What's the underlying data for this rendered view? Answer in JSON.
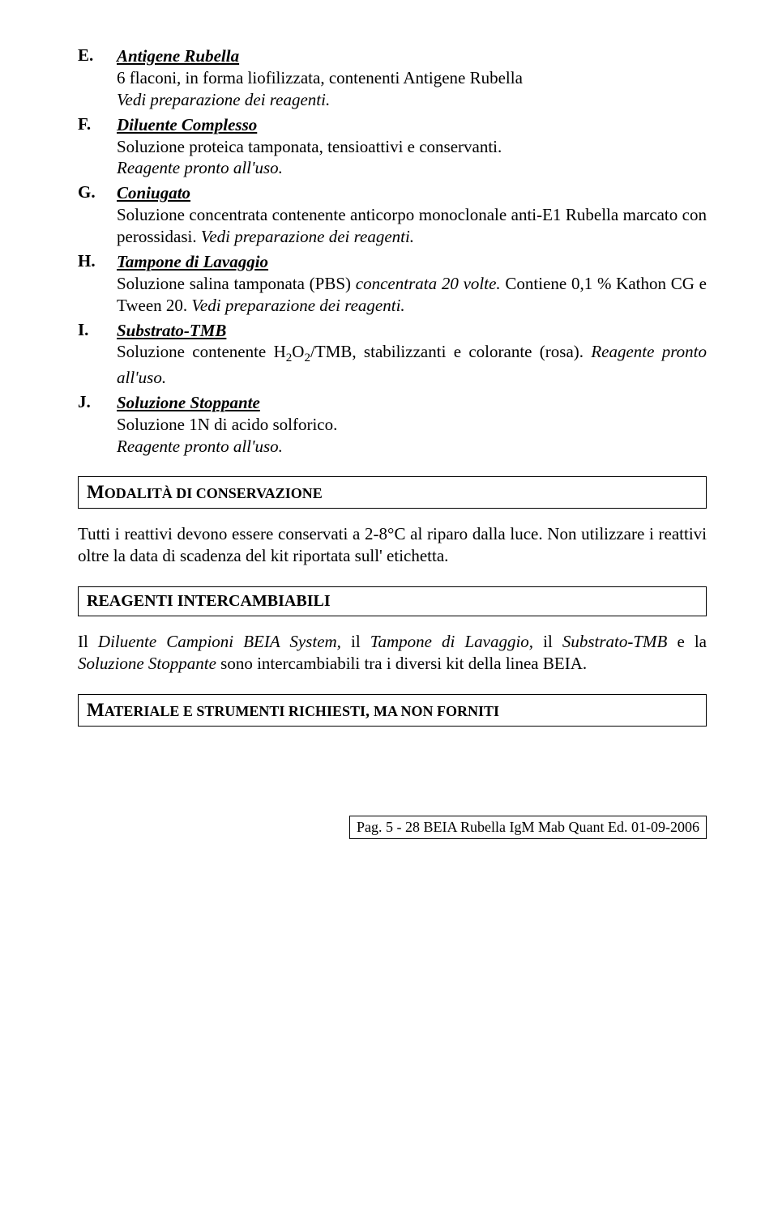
{
  "entries": [
    {
      "letter": "E.",
      "title": "Antigene Rubella",
      "lines": [
        {
          "text": "6 flaconi, in forma liofilizzata, contenenti Antigene Rubella",
          "italic": false
        },
        {
          "text": "Vedi preparazione dei reagenti.",
          "italic": true
        }
      ]
    },
    {
      "letter": "F.",
      "title": "Diluente Complesso",
      "lines": [
        {
          "text": "Soluzione proteica tamponata, tensioattivi e conservanti.",
          "italic": false
        },
        {
          "text": "Reagente pronto all'uso.",
          "italic": true
        }
      ]
    },
    {
      "letter": "G.",
      "title": "Coniugato",
      "lines": [
        {
          "text": "Soluzione concentrata contenente anticorpo monoclonale anti-E1 Rubella marcato con perossidasi. ",
          "italic": false,
          "trail_italic": "Vedi preparazione dei reagenti."
        }
      ]
    },
    {
      "letter": "H.",
      "title": "Tampone di Lavaggio",
      "lines": [
        {
          "text": "Soluzione salina tamponata (PBS) ",
          "italic": false,
          "inline_italic": "concentrata 20 volte.",
          "after": " Contiene  0,1 % Kathon CG  e Tween 20. ",
          "trail_italic": "Vedi preparazione dei reagenti."
        }
      ]
    },
    {
      "letter": "I.",
      "title": "Substrato-TMB",
      "lines": [
        {
          "html": true,
          "text": "Soluzione contenente H<sub>2</sub>O<sub>2</sub>/TMB, stabilizzanti e colorante (rosa). ",
          "trail_italic": "Reagente pronto all'uso."
        }
      ]
    },
    {
      "letter": "J.",
      "title": "Soluzione Stoppante",
      "lines": [
        {
          "text": "Soluzione 1N di acido solforico.",
          "italic": false
        },
        {
          "text": "Reagente pronto all'uso.",
          "italic": true
        }
      ]
    }
  ],
  "sections": {
    "conservation": {
      "heading_prefix": "M",
      "heading_rest": "ODALITÀ DI CONSERVAZIONE",
      "paragraphs": [
        "Tutti i reattivi devono essere conservati a 2-8°C al riparo dalla luce. Non utilizzare i reattivi oltre la data di scadenza del kit riportata sull' etichetta."
      ]
    },
    "interchangeable": {
      "heading": "REAGENTI INTERCAMBIABILI",
      "paragraph_parts": [
        {
          "text": "Il ",
          "italic": false
        },
        {
          "text": "Diluente Campioni BEIA System,",
          "italic": true
        },
        {
          "text": "  il ",
          "italic": false
        },
        {
          "text": "Tampone di Lavaggio,",
          "italic": true
        },
        {
          "text": " il ",
          "italic": false
        },
        {
          "text": "Substrato-TMB",
          "italic": true
        },
        {
          "text": " e la ",
          "italic": false
        },
        {
          "text": "Soluzione Stoppante",
          "italic": true
        },
        {
          "text": " sono intercambiabili tra i diversi kit della linea BEIA.",
          "italic": false
        }
      ]
    },
    "materials": {
      "heading_prefix": "M",
      "heading_rest": "ATERIALE E STRUMENTI RICHIESTI",
      "heading_suffix_prefix": "MA NON FORNITI"
    }
  },
  "footer": "Pag. 5 - 28  BEIA Rubella IgM Mab Quant Ed. 01-09-2006"
}
